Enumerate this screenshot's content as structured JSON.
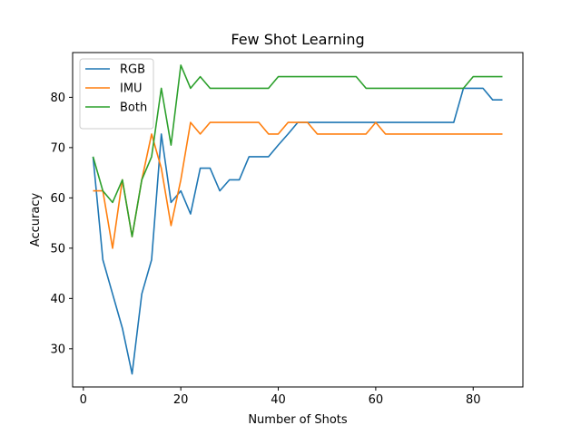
{
  "chart_data": {
    "type": "line",
    "title": "Few Shot Learning",
    "xlabel": "Number of Shots",
    "ylabel": "Accuracy",
    "xlim": [
      -2.2,
      90.2
    ],
    "ylim": [
      22.4,
      88.9
    ],
    "xticks": [
      0,
      20,
      40,
      60,
      80
    ],
    "yticks": [
      30,
      40,
      50,
      60,
      70,
      80
    ],
    "grid": false,
    "legend_position": "top-left",
    "x": [
      2,
      4,
      6,
      8,
      10,
      12,
      14,
      16,
      18,
      20,
      22,
      24,
      26,
      28,
      30,
      32,
      34,
      36,
      38,
      40,
      42,
      44,
      46,
      48,
      50,
      52,
      54,
      56,
      58,
      60,
      62,
      64,
      66,
      68,
      70,
      72,
      74,
      76,
      78,
      80,
      82,
      84,
      86
    ],
    "series": [
      {
        "name": "RGB",
        "color": "#1f77b4",
        "values": [
          68.2,
          47.7,
          40.9,
          34.1,
          25.0,
          40.9,
          47.7,
          72.7,
          59.1,
          61.4,
          56.8,
          65.9,
          65.9,
          61.4,
          63.6,
          63.6,
          68.2,
          68.2,
          68.2,
          70.5,
          72.7,
          75.0,
          75.0,
          75.0,
          75.0,
          75.0,
          75.0,
          75.0,
          75.0,
          75.0,
          75.0,
          75.0,
          75.0,
          75.0,
          75.0,
          75.0,
          75.0,
          75.0,
          81.8,
          81.8,
          81.8,
          79.5,
          79.5
        ]
      },
      {
        "name": "IMU",
        "color": "#ff7f0e",
        "values": [
          61.4,
          61.4,
          50.0,
          63.6,
          52.3,
          63.6,
          72.7,
          65.9,
          54.5,
          63.6,
          75.0,
          72.7,
          75.0,
          75.0,
          75.0,
          75.0,
          75.0,
          75.0,
          72.7,
          72.7,
          75.0,
          75.0,
          75.0,
          72.7,
          72.7,
          72.7,
          72.7,
          72.7,
          72.7,
          75.0,
          72.7,
          72.7,
          72.7,
          72.7,
          72.7,
          72.7,
          72.7,
          72.7,
          72.7,
          72.7,
          72.7,
          72.7,
          72.7
        ]
      },
      {
        "name": "Both",
        "color": "#2ca02c",
        "values": [
          68.2,
          61.4,
          59.1,
          63.6,
          52.3,
          63.6,
          68.2,
          81.8,
          70.5,
          86.4,
          81.8,
          84.1,
          81.8,
          81.8,
          81.8,
          81.8,
          81.8,
          81.8,
          81.8,
          84.1,
          84.1,
          84.1,
          84.1,
          84.1,
          84.1,
          84.1,
          84.1,
          84.1,
          81.8,
          81.8,
          81.8,
          81.8,
          81.8,
          81.8,
          81.8,
          81.8,
          81.8,
          81.8,
          81.8,
          84.1,
          84.1,
          84.1,
          84.1
        ]
      }
    ]
  }
}
